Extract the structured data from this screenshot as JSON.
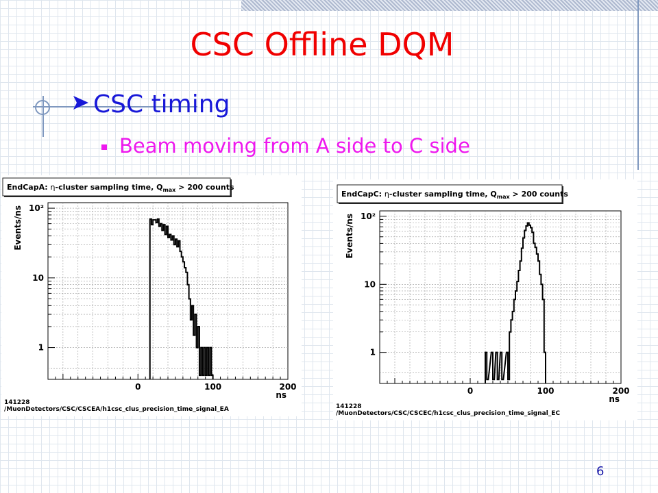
{
  "slide": {
    "title": "CSC Offline DQM",
    "bullet_main": "CSC timing",
    "bullet_sub": "Beam moving from A side to C side",
    "slide_number": "6"
  },
  "colors": {
    "title": "#f00000",
    "bullet_main": "#1818d8",
    "bullet_sub": "#ee18ee",
    "arrow_icon": "#1818d8"
  },
  "chart_data": [
    {
      "type": "line",
      "title_prefix": "EndCapA: ",
      "title_eta": "η",
      "title_main": "-cluster sampling time, Q",
      "title_sub": "max",
      "title_tail": " >  200 counts",
      "xlabel": "ns",
      "ylabel": "Events/ns",
      "xlim": [
        -120,
        200
      ],
      "ylim": [
        0.35,
        120
      ],
      "yscale": "log",
      "grid": true,
      "x_ticks": [
        "0",
        "100",
        "200"
      ],
      "y_ticks": [
        "1",
        "10",
        "10²"
      ],
      "run_label": "141228",
      "path_label": "/MuonDetectors/CSC/CSCEA/h1csc_clus_precision_time_signal_EA",
      "x": [
        16,
        18,
        20,
        22,
        24,
        26,
        28,
        30,
        32,
        34,
        36,
        38,
        40,
        42,
        44,
        46,
        48,
        50,
        52,
        54,
        56,
        58,
        60,
        62,
        64,
        66,
        68,
        70,
        72,
        74,
        76,
        78,
        80,
        82,
        84,
        86,
        88,
        90,
        92,
        94,
        96,
        98
      ],
      "values": [
        70,
        58,
        68,
        68,
        62,
        70,
        55,
        60,
        48,
        58,
        42,
        55,
        38,
        42,
        35,
        40,
        30,
        36,
        28,
        34,
        24,
        20,
        17,
        14,
        12,
        8,
        5,
        2.5,
        4,
        1.5,
        3,
        1,
        2,
        0.4,
        1,
        0.4,
        1,
        0.4,
        1,
        0.4,
        1,
        0.4
      ]
    },
    {
      "type": "line",
      "title_prefix": "EndCapC: ",
      "title_eta": "η",
      "title_main": "-cluster sampling time, Q",
      "title_sub": "max",
      "title_tail": " >  200 counts",
      "xlabel": "ns",
      "ylabel": "Events/ns",
      "xlim": [
        -120,
        200
      ],
      "ylim": [
        0.35,
        120
      ],
      "yscale": "log",
      "grid": true,
      "x_ticks": [
        "0",
        "100",
        "200"
      ],
      "y_ticks": [
        "1",
        "10",
        "10²"
      ],
      "run_label": "141228",
      "path_label": "/MuonDetectors/CSC/CSCEC/h1csc_clus_precision_time_signal_EC",
      "x": [
        20,
        22,
        28,
        30,
        34,
        36,
        40,
        42,
        48,
        50,
        52,
        54,
        56,
        58,
        60,
        62,
        64,
        66,
        68,
        70,
        72,
        74,
        76,
        78,
        80,
        82,
        84,
        86,
        88,
        90,
        92,
        94,
        96,
        98
      ],
      "values": [
        1,
        0.4,
        1,
        0.4,
        1,
        0.4,
        1,
        0.4,
        1,
        0.4,
        2,
        3,
        4,
        6,
        8,
        11,
        16,
        22,
        34,
        48,
        62,
        72,
        80,
        74,
        68,
        58,
        40,
        35,
        28,
        22,
        14,
        10,
        6,
        1
      ]
    }
  ]
}
